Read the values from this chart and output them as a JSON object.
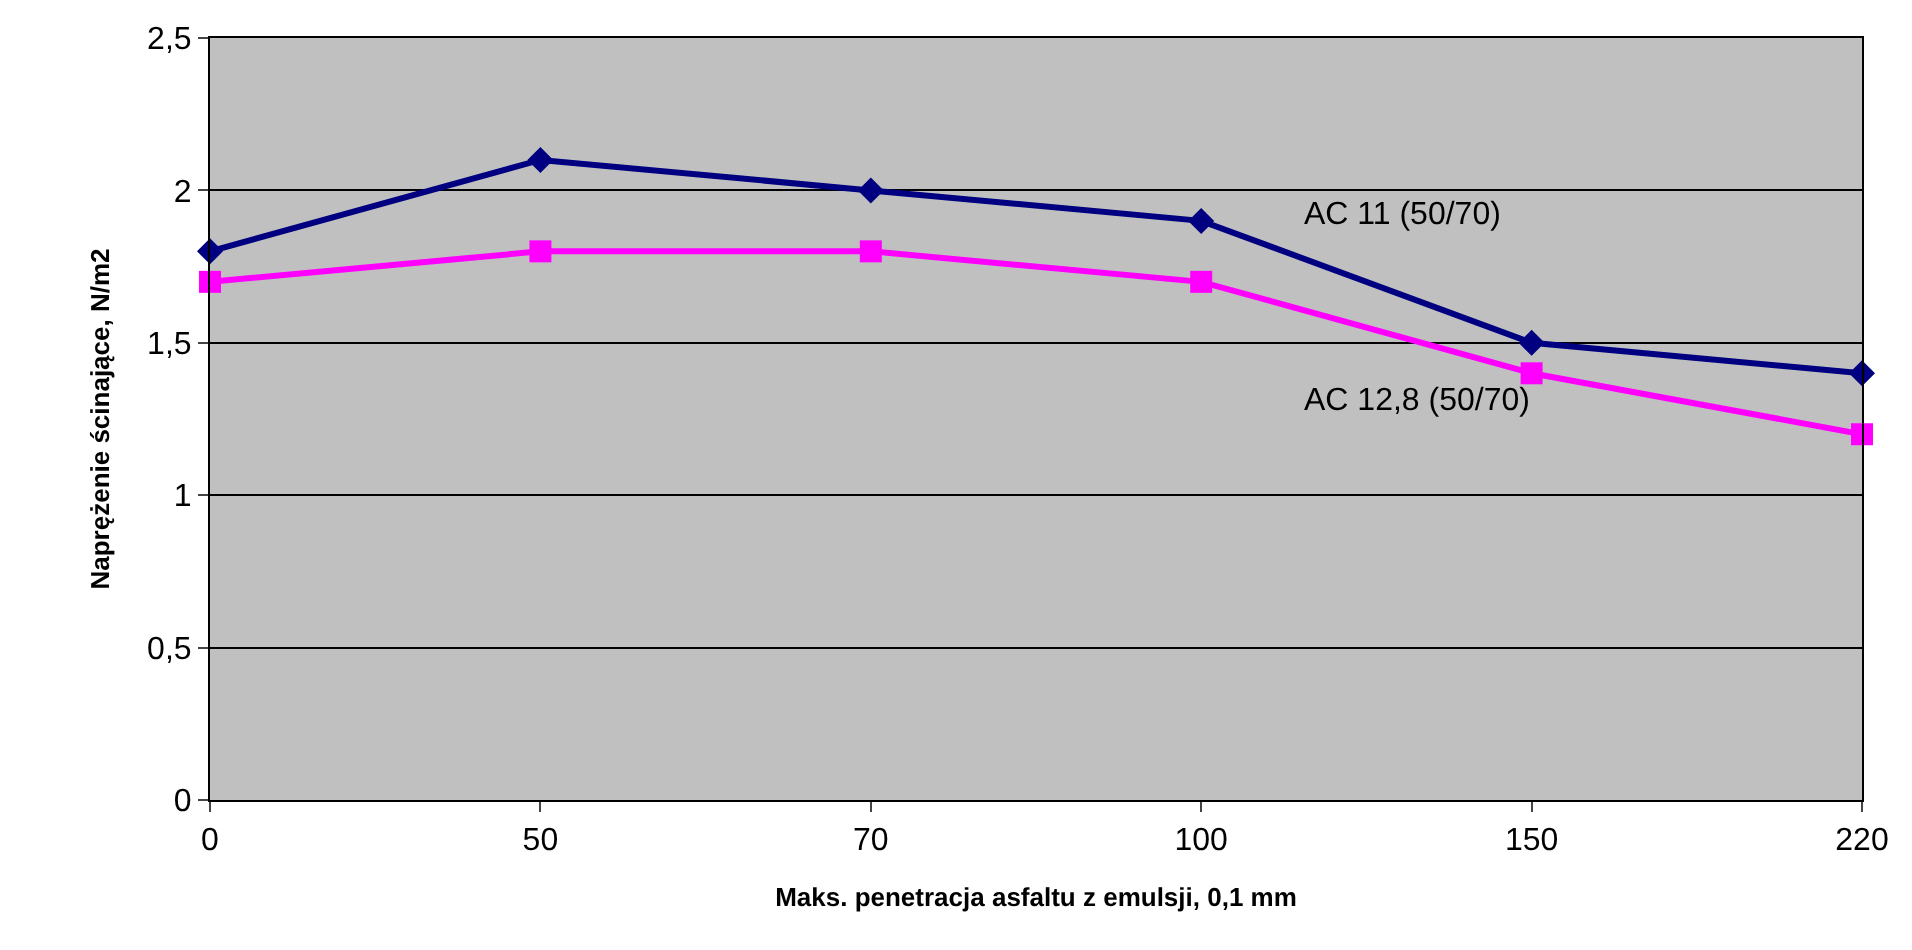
{
  "chart_data": {
    "type": "line",
    "xlabel": "Maks. penetracja asfaltu z emulsji, 0,1 mm",
    "ylabel": "Naprężenie ścinające, N/m2",
    "categories": [
      "0",
      "50",
      "70",
      "100",
      "150",
      "220"
    ],
    "series": [
      {
        "name": "AC 11 (50/70)",
        "color": "#000080",
        "marker": "diamond",
        "values": [
          1.8,
          2.1,
          2.0,
          1.9,
          1.5,
          1.4
        ]
      },
      {
        "name": "AC 12,8 (50/70)",
        "color": "#ff00ff",
        "marker": "square",
        "values": [
          1.7,
          1.8,
          1.8,
          1.7,
          1.4,
          1.2
        ]
      }
    ],
    "ylim": [
      0,
      2.5
    ],
    "yticks": [
      0,
      {
        "value": 0.5,
        "label": "0,5"
      },
      1,
      {
        "value": 1.5,
        "label": "1,5"
      },
      2,
      {
        "value": 2.5,
        "label": "2,5"
      }
    ],
    "grid": "y",
    "legend": false,
    "line_style": "solid"
  }
}
